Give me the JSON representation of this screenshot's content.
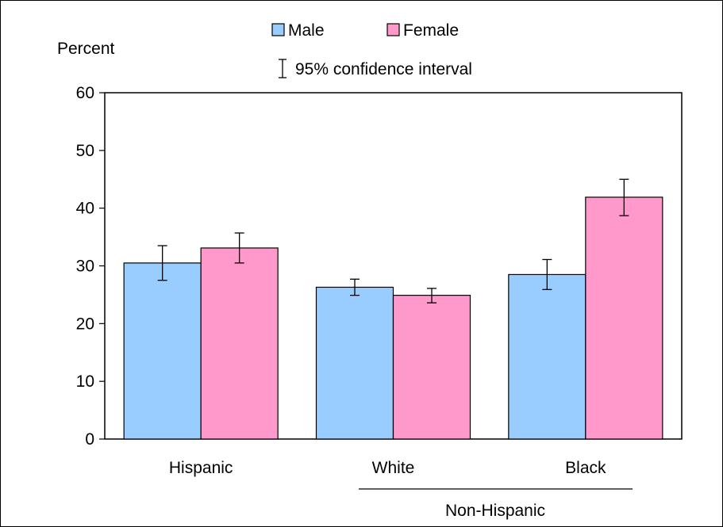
{
  "chart_data": {
    "type": "bar",
    "ylabel": "Percent",
    "ylim": [
      0,
      60
    ],
    "yticks": [
      0,
      10,
      20,
      30,
      40,
      50,
      60
    ],
    "categories": [
      "Hispanic",
      "White",
      "Black"
    ],
    "group_label": "Non-Hispanic",
    "series": [
      {
        "name": "Male",
        "color": "#99ccff",
        "values": [
          30.5,
          26.3,
          28.5
        ],
        "ci_low": [
          27.5,
          24.9,
          25.9
        ],
        "ci_high": [
          33.5,
          27.7,
          31.1
        ]
      },
      {
        "name": "Female",
        "color": "#ff99cc",
        "values": [
          33.1,
          24.9,
          41.9
        ],
        "ci_low": [
          30.5,
          23.6,
          38.7
        ],
        "ci_high": [
          35.7,
          26.1,
          45.0
        ]
      }
    ],
    "legend": {
      "position": "top-center",
      "ci_label": "95% confidence interval"
    },
    "grid": false
  }
}
